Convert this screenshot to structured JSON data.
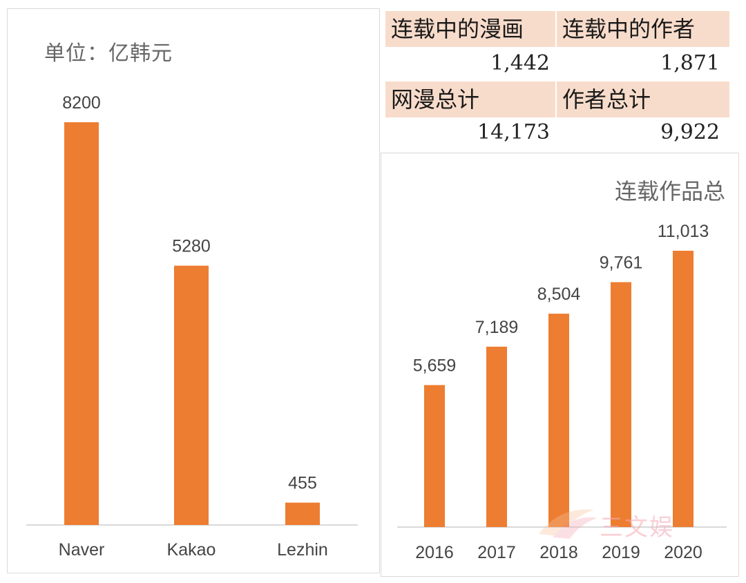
{
  "left_chart": {
    "unit_label": "单位：亿韩元",
    "chart_data": {
      "type": "bar",
      "title": "",
      "unit": "单位：亿韩元",
      "categories": [
        "Naver",
        "Kakao",
        "Lezhin"
      ],
      "values": [
        8200,
        5280,
        455
      ],
      "value_labels": [
        "8200",
        "5280",
        "455"
      ],
      "ylim": [
        0,
        8200
      ]
    }
  },
  "stats": {
    "serial_comics_label": "连载中的漫画",
    "serial_comics_value": "1,442",
    "serial_authors_label": "连载中的作者",
    "serial_authors_value": "1,871",
    "total_webtoons_label": "网漫总计",
    "total_webtoons_value": "14,173",
    "total_authors_label": "作者总计",
    "total_authors_value": "9,922"
  },
  "right_chart": {
    "title": "连载作品总",
    "chart_data": {
      "type": "bar",
      "title": "连载作品总",
      "categories": [
        "2016",
        "2017",
        "2018",
        "2019",
        "2020"
      ],
      "values": [
        5659,
        7189,
        8504,
        9761,
        11013
      ],
      "value_labels": [
        "5,659",
        "7,189",
        "8,504",
        "9,761",
        "11,013"
      ],
      "ylim": [
        0,
        11013
      ]
    }
  },
  "watermark": {
    "text": "三文娱"
  },
  "colors": {
    "bar": "#ed7d31",
    "header_bg": "#f8dccb",
    "axis": "#d9d9d9"
  }
}
